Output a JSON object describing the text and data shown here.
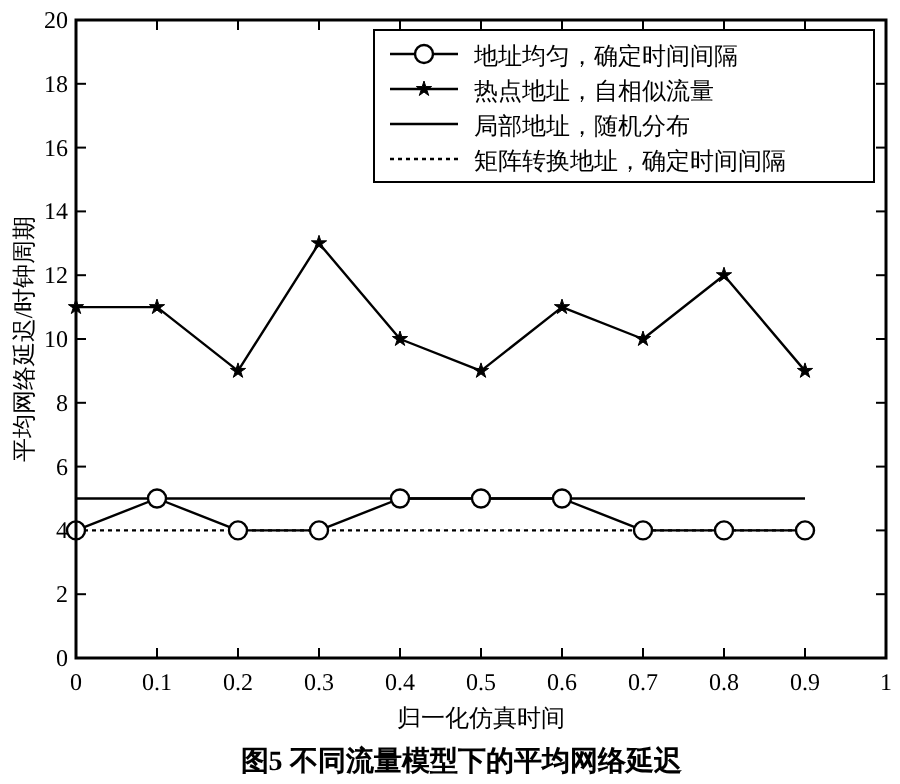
{
  "chart_data": {
    "type": "line",
    "title": "图5 不同流量模型下的平均网络延迟",
    "xlabel": "归一化仿真时间",
    "ylabel": "平均网络延迟/时钟周期",
    "xlim": [
      0,
      1
    ],
    "xticks": [
      0,
      0.1,
      0.2,
      0.3,
      0.4,
      0.5,
      0.6,
      0.7,
      0.8,
      0.9,
      1
    ],
    "ylim": [
      0,
      20
    ],
    "yticks": [
      0,
      2,
      4,
      6,
      8,
      10,
      12,
      14,
      16,
      18,
      20
    ],
    "legend": "top right",
    "series": [
      {
        "name": "地址均匀，确定时间间隔",
        "color": "#000000",
        "marker": "circle",
        "line_style": "solid",
        "x": [
          0,
          0.1,
          0.2,
          0.3,
          0.4,
          0.5,
          0.6,
          0.7,
          0.8,
          0.9
        ],
        "values": [
          4,
          5,
          4,
          4,
          5,
          5,
          5,
          4,
          4,
          4
        ]
      },
      {
        "name": "热点地址，自相似流量",
        "color": "#000000",
        "marker": "star",
        "line_style": "solid",
        "x": [
          0,
          0.1,
          0.2,
          0.3,
          0.4,
          0.5,
          0.6,
          0.7,
          0.8,
          0.9
        ],
        "values": [
          11,
          11,
          9,
          13,
          10,
          9,
          11,
          10,
          12,
          9
        ]
      },
      {
        "name": "局部地址，随机分布",
        "color": "#000000",
        "marker": "none",
        "line_style": "solid",
        "x": [
          0,
          0.9
        ],
        "values": [
          5,
          5
        ]
      },
      {
        "name": "矩阵转换地址，确定时间间隔",
        "color": "#000000",
        "marker": "none",
        "line_style": "dotted",
        "x": [
          0,
          0.9
        ],
        "values": [
          4,
          4
        ]
      }
    ]
  }
}
